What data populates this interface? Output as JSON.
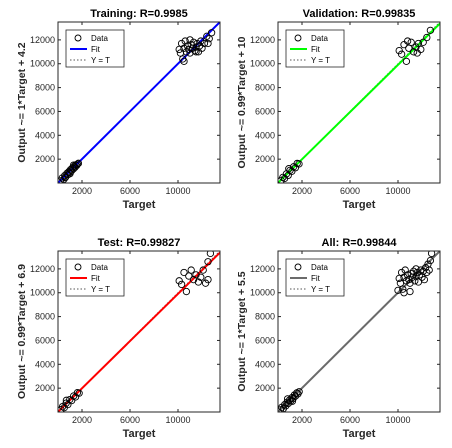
{
  "chart_data": [
    {
      "type": "scatter",
      "title": "Training: R=0.9985",
      "xlabel": "Target",
      "ylabel": "Output ~= 1*Target + 4.2",
      "xlim": [
        0,
        13500
      ],
      "ylim": [
        0,
        13500
      ],
      "xticks": [
        2000,
        6000,
        10000
      ],
      "yticks": [
        2000,
        4000,
        6000,
        8000,
        10000,
        12000
      ],
      "grid": false,
      "legend_position": "top-left",
      "fit_color": "#0000ff",
      "fit": {
        "slope": 1.0,
        "intercept": 4.2
      },
      "legend": [
        "Data",
        "Fit",
        "Y = T"
      ],
      "data": [
        [
          220,
          180
        ],
        [
          350,
          420
        ],
        [
          480,
          300
        ],
        [
          560,
          620
        ],
        [
          650,
          520
        ],
        [
          740,
          800
        ],
        [
          820,
          700
        ],
        [
          900,
          950
        ],
        [
          980,
          880
        ],
        [
          1050,
          1120
        ],
        [
          1120,
          1020
        ],
        [
          1200,
          1260
        ],
        [
          1280,
          1180
        ],
        [
          1350,
          1400
        ],
        [
          1420,
          1320
        ],
        [
          1480,
          1520
        ],
        [
          1550,
          1460
        ],
        [
          1620,
          1580
        ],
        [
          1700,
          1650
        ],
        [
          600,
          450
        ],
        [
          1000,
          780
        ],
        [
          1300,
          1500
        ],
        [
          10100,
          11200
        ],
        [
          10200,
          10900
        ],
        [
          10300,
          11700
        ],
        [
          10400,
          10400
        ],
        [
          10500,
          11300
        ],
        [
          10600,
          11900
        ],
        [
          10700,
          11000
        ],
        [
          10800,
          11500
        ],
        [
          10900,
          11200
        ],
        [
          11000,
          10900
        ],
        [
          11100,
          11600
        ],
        [
          11200,
          11300
        ],
        [
          11300,
          11800
        ],
        [
          11400,
          11100
        ],
        [
          11500,
          11400
        ],
        [
          11600,
          11700
        ],
        [
          11700,
          11000
        ],
        [
          11800,
          11500
        ],
        [
          11900,
          11900
        ],
        [
          12000,
          11300
        ],
        [
          12200,
          11700
        ],
        [
          12400,
          12300
        ],
        [
          12600,
          12100
        ],
        [
          12800,
          12600
        ],
        [
          12500,
          11700
        ],
        [
          10500,
          10200
        ],
        [
          11000,
          12000
        ],
        [
          11500,
          11000
        ]
      ]
    },
    {
      "type": "scatter",
      "title": "Validation: R=0.99835",
      "xlabel": "Target",
      "ylabel": "Output ~= 0.99*Target + 10",
      "xlim": [
        0,
        13500
      ],
      "ylim": [
        0,
        13500
      ],
      "xticks": [
        2000,
        6000,
        10000
      ],
      "yticks": [
        2000,
        4000,
        6000,
        8000,
        10000,
        12000
      ],
      "grid": false,
      "legend_position": "top-left",
      "fit_color": "#00ff00",
      "fit": {
        "slope": 0.99,
        "intercept": 10
      },
      "legend": [
        "Data",
        "Fit",
        "Y = T"
      ],
      "data": [
        [
          260,
          220
        ],
        [
          400,
          470
        ],
        [
          550,
          380
        ],
        [
          700,
          760
        ],
        [
          850,
          640
        ],
        [
          1000,
          1060
        ],
        [
          1150,
          980
        ],
        [
          1300,
          1360
        ],
        [
          1450,
          1280
        ],
        [
          1600,
          1640
        ],
        [
          1750,
          1600
        ],
        [
          900,
          1200
        ],
        [
          10100,
          11100
        ],
        [
          10300,
          10800
        ],
        [
          10500,
          11600
        ],
        [
          10700,
          10200
        ],
        [
          10900,
          11300
        ],
        [
          11100,
          11800
        ],
        [
          11300,
          11000
        ],
        [
          11500,
          11400
        ],
        [
          11700,
          11700
        ],
        [
          11900,
          11200
        ],
        [
          12100,
          11800
        ],
        [
          12400,
          12200
        ],
        [
          12700,
          12800
        ],
        [
          10800,
          11900
        ],
        [
          11600,
          10900
        ]
      ]
    },
    {
      "type": "scatter",
      "title": "Test: R=0.99827",
      "xlabel": "Target",
      "ylabel": "Output ~= 0.99*Target + 6.9",
      "xlim": [
        0,
        13500
      ],
      "ylim": [
        0,
        13500
      ],
      "xticks": [
        2000,
        6000,
        10000
      ],
      "yticks": [
        2000,
        4000,
        6000,
        8000,
        10000,
        12000
      ],
      "grid": false,
      "legend_position": "top-left",
      "fit_color": "#ff0000",
      "fit": {
        "slope": 0.99,
        "intercept": 6.9
      },
      "legend": [
        "Data",
        "Fit",
        "Y = T"
      ],
      "data": [
        [
          240,
          200
        ],
        [
          380,
          450
        ],
        [
          520,
          360
        ],
        [
          680,
          740
        ],
        [
          820,
          620
        ],
        [
          980,
          1040
        ],
        [
          1140,
          960
        ],
        [
          1300,
          1340
        ],
        [
          1460,
          1260
        ],
        [
          1620,
          1620
        ],
        [
          1760,
          1580
        ],
        [
          700,
          980
        ],
        [
          10100,
          11000
        ],
        [
          10300,
          10700
        ],
        [
          10500,
          11700
        ],
        [
          10700,
          10100
        ],
        [
          10900,
          11400
        ],
        [
          11100,
          11900
        ],
        [
          11300,
          11100
        ],
        [
          11500,
          11500
        ],
        [
          11700,
          10900
        ],
        [
          11900,
          11300
        ],
        [
          12100,
          11900
        ],
        [
          12300,
          10800
        ],
        [
          12500,
          12600
        ],
        [
          12700,
          13300
        ],
        [
          12500,
          11100
        ]
      ]
    },
    {
      "type": "scatter",
      "title": "All: R=0.99844",
      "xlabel": "Target",
      "ylabel": "Output ~= 1*Target + 5.5",
      "xlim": [
        0,
        13500
      ],
      "ylim": [
        0,
        13500
      ],
      "xticks": [
        2000,
        6000,
        10000
      ],
      "yticks": [
        2000,
        4000,
        6000,
        8000,
        10000,
        12000
      ],
      "grid": false,
      "legend_position": "top-left",
      "fit_color": "#6b6b6b",
      "fit": {
        "slope": 1.0,
        "intercept": 5.5
      },
      "legend": [
        "Data",
        "Fit",
        "Y = T"
      ],
      "data": [
        [
          200,
          180
        ],
        [
          320,
          400
        ],
        [
          450,
          290
        ],
        [
          560,
          620
        ],
        [
          660,
          520
        ],
        [
          760,
          820
        ],
        [
          860,
          720
        ],
        [
          960,
          1000
        ],
        [
          1060,
          920
        ],
        [
          1160,
          1200
        ],
        [
          1260,
          1120
        ],
        [
          1360,
          1420
        ],
        [
          1460,
          1340
        ],
        [
          1560,
          1600
        ],
        [
          1660,
          1520
        ],
        [
          1760,
          1700
        ],
        [
          800,
          1100
        ],
        [
          1200,
          900
        ],
        [
          10000,
          10200
        ],
        [
          10100,
          11200
        ],
        [
          10200,
          10800
        ],
        [
          10300,
          11700
        ],
        [
          10400,
          10300
        ],
        [
          10500,
          11300
        ],
        [
          10600,
          11900
        ],
        [
          10700,
          11000
        ],
        [
          10800,
          11500
        ],
        [
          10900,
          11100
        ],
        [
          11000,
          10800
        ],
        [
          11100,
          11600
        ],
        [
          11200,
          11300
        ],
        [
          11300,
          11800
        ],
        [
          11400,
          11000
        ],
        [
          11500,
          11400
        ],
        [
          11600,
          11700
        ],
        [
          11700,
          10900
        ],
        [
          11800,
          11500
        ],
        [
          11900,
          11900
        ],
        [
          12000,
          11300
        ],
        [
          12100,
          11800
        ],
        [
          12200,
          11100
        ],
        [
          12300,
          12100
        ],
        [
          12400,
          11700
        ],
        [
          12500,
          12400
        ],
        [
          12600,
          11900
        ],
        [
          12700,
          12700
        ],
        [
          12800,
          13300
        ],
        [
          11000,
          10100
        ],
        [
          10500,
          10000
        ],
        [
          11500,
          12000
        ]
      ]
    }
  ]
}
